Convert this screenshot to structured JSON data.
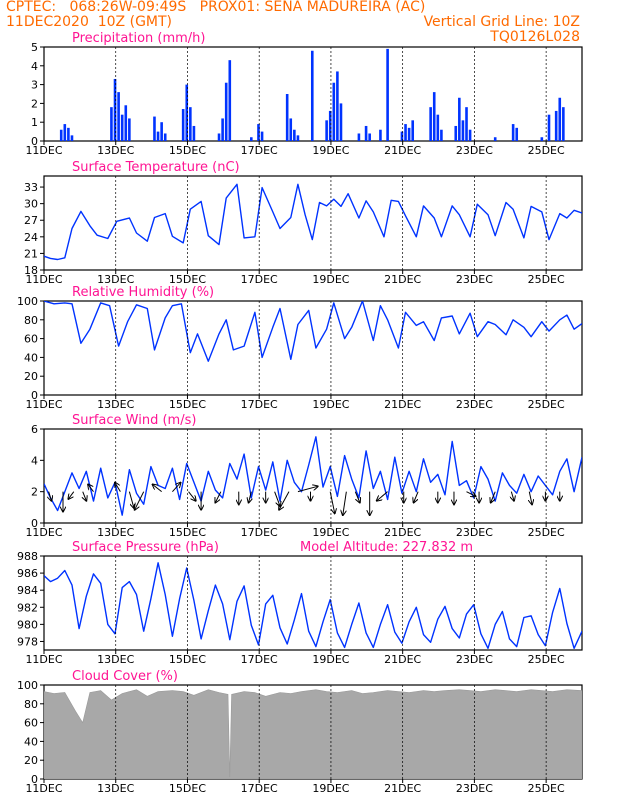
{
  "header": {
    "line1_left": "CPTEC:   068:26W-09:49S   PROX01: SENA MADUREIRA (AC)",
    "line2_left": "11DEC2020  10Z (GMT)",
    "line2_right": "Vertical Grid Line: 10Z",
    "line3_right": "TQ0126L028"
  },
  "colors": {
    "header": "#ff6a00",
    "panel_title": "#ff1493",
    "series": "#0033ff",
    "cloud": "#a8a8a8",
    "grid": "#000000"
  },
  "chart_data": [
    {
      "type": "bar",
      "title": "Precipitation (mm/h)",
      "ylim": [
        0,
        5
      ],
      "yticks": [
        0,
        1,
        2,
        3,
        4,
        5
      ],
      "x_tick_labels": [
        "11DEC",
        "13DEC",
        "15DEC",
        "17DEC",
        "19DEC",
        "21DEC",
        "23DEC",
        "25DEC"
      ],
      "x_start_day": 11.42,
      "x_end_day": 26.42,
      "series": [
        {
          "x": [
            11.9,
            12.0,
            12.1,
            12.2,
            13.3,
            13.4,
            13.5,
            13.6,
            13.7,
            13.8,
            14.5,
            14.6,
            14.7,
            14.8,
            15.3,
            15.4,
            15.5,
            15.6,
            16.3,
            16.4,
            16.5,
            16.6,
            17.2,
            17.4,
            17.5,
            18.2,
            18.3,
            18.4,
            18.5,
            18.9,
            19.3,
            19.4,
            19.5,
            19.6,
            19.7,
            20.2,
            20.4,
            20.5,
            20.8,
            21.0,
            21.4,
            21.5,
            21.6,
            21.7,
            22.2,
            22.3,
            22.4,
            22.5,
            22.9,
            23.0,
            23.1,
            23.2,
            23.3,
            24.0,
            24.5,
            24.6,
            25.3,
            25.5,
            25.7,
            25.8,
            25.9
          ],
          "values": [
            0.6,
            0.9,
            0.7,
            0.3,
            1.8,
            3.3,
            2.6,
            1.4,
            1.9,
            1.2,
            1.3,
            0.5,
            1.0,
            0.4,
            1.7,
            3.0,
            1.8,
            0.8,
            0.4,
            1.2,
            3.1,
            4.3,
            0.2,
            0.9,
            0.5,
            2.5,
            1.2,
            0.6,
            0.3,
            4.8,
            1.1,
            1.6,
            3.1,
            3.7,
            2.0,
            0.4,
            0.8,
            0.4,
            0.6,
            4.9,
            0.5,
            0.9,
            0.7,
            1.1,
            1.8,
            2.6,
            1.4,
            0.6,
            0.8,
            2.3,
            1.1,
            1.8,
            0.6,
            0.2,
            0.9,
            0.7,
            0.2,
            1.4,
            1.6,
            2.3,
            1.8
          ]
        }
      ]
    },
    {
      "type": "line",
      "title": "Surface Temperature (nC)",
      "ylim": [
        18,
        35
      ],
      "yticks": [
        18,
        21,
        24,
        27,
        30,
        33
      ],
      "x_tick_labels": [
        "11DEC",
        "13DEC",
        "15DEC",
        "17DEC",
        "19DEC",
        "21DEC",
        "23DEC",
        "25DEC"
      ],
      "series": [
        {
          "x": [
            11.42,
            11.6,
            11.8,
            12.0,
            12.2,
            12.45,
            12.7,
            12.9,
            13.2,
            13.45,
            13.8,
            14.0,
            14.3,
            14.5,
            14.8,
            15.0,
            15.3,
            15.5,
            15.8,
            16.0,
            16.3,
            16.5,
            16.8,
            17.0,
            17.3,
            17.5,
            17.8,
            18.0,
            18.3,
            18.5,
            18.7,
            18.9,
            19.1,
            19.3,
            19.5,
            19.7,
            19.9,
            20.2,
            20.4,
            20.6,
            20.9,
            21.1,
            21.3,
            21.5,
            21.8,
            22.0,
            22.3,
            22.5,
            22.8,
            23.0,
            23.3,
            23.5,
            23.8,
            24.0,
            24.3,
            24.5,
            24.8,
            25.0,
            25.3,
            25.5,
            25.8,
            26.0,
            26.2,
            26.42
          ],
          "values": [
            20.5,
            20.1,
            19.9,
            20.2,
            25.5,
            28.6,
            26.0,
            24.3,
            23.7,
            26.8,
            27.4,
            24.7,
            23.2,
            27.5,
            28.2,
            24.1,
            22.9,
            29.0,
            30.4,
            24.2,
            22.6,
            31.0,
            33.5,
            23.8,
            24.0,
            32.9,
            28.5,
            25.5,
            27.5,
            33.5,
            28.0,
            23.5,
            30.2,
            29.6,
            30.8,
            29.5,
            31.8,
            27.4,
            30.5,
            28.5,
            24.0,
            30.6,
            30.4,
            27.8,
            24.0,
            29.6,
            27.4,
            24.0,
            29.6,
            28.0,
            24.0,
            29.9,
            28.0,
            24.2,
            30.2,
            29.0,
            23.8,
            29.5,
            28.5,
            23.5,
            28.2,
            27.4,
            28.8,
            28.3
          ]
        }
      ]
    },
    {
      "type": "line",
      "title": "Relative Humidity (%)",
      "ylim": [
        0,
        100
      ],
      "yticks": [
        0,
        20,
        40,
        60,
        80,
        100
      ],
      "x_tick_labels": [
        "11DEC",
        "13DEC",
        "15DEC",
        "17DEC",
        "19DEC",
        "21DEC",
        "23DEC",
        "25DEC"
      ],
      "series": [
        {
          "x": [
            11.42,
            11.7,
            12.0,
            12.2,
            12.45,
            12.7,
            13.0,
            13.25,
            13.5,
            13.75,
            14.0,
            14.3,
            14.5,
            14.8,
            15.0,
            15.25,
            15.5,
            15.7,
            16.0,
            16.3,
            16.5,
            16.7,
            17.0,
            17.3,
            17.5,
            17.8,
            18.0,
            18.3,
            18.5,
            18.8,
            19.0,
            19.3,
            19.5,
            19.8,
            20.0,
            20.3,
            20.6,
            20.8,
            21.0,
            21.3,
            21.5,
            21.8,
            22.0,
            22.3,
            22.5,
            22.8,
            23.0,
            23.3,
            23.5,
            23.8,
            24.0,
            24.3,
            24.5,
            24.8,
            25.0,
            25.3,
            25.5,
            25.8,
            26.0,
            26.2,
            26.42
          ],
          "values": [
            100,
            97,
            98,
            97,
            55,
            70,
            98,
            95,
            52,
            78,
            96,
            92,
            48,
            82,
            95,
            97,
            45,
            65,
            36,
            65,
            80,
            48,
            52,
            88,
            40,
            72,
            92,
            38,
            75,
            90,
            50,
            70,
            98,
            60,
            72,
            100,
            58,
            95,
            80,
            50,
            88,
            74,
            78,
            58,
            82,
            84,
            65,
            87,
            62,
            78,
            75,
            64,
            80,
            72,
            62,
            78,
            68,
            80,
            85,
            70,
            76
          ]
        }
      ]
    },
    {
      "type": "line",
      "title": "Surface Wind (m/s)",
      "ylim": [
        0,
        6
      ],
      "yticks": [
        0,
        2,
        4,
        6
      ],
      "x_tick_labels": [
        "11DEC",
        "13DEC",
        "15DEC",
        "17DEC",
        "19DEC",
        "21DEC",
        "23DEC",
        "25DEC"
      ],
      "series": [
        {
          "x": [
            11.42,
            11.6,
            11.8,
            12.0,
            12.2,
            12.4,
            12.6,
            12.8,
            13.0,
            13.2,
            13.4,
            13.6,
            13.8,
            14.0,
            14.2,
            14.4,
            14.6,
            14.8,
            15.0,
            15.2,
            15.4,
            15.6,
            15.8,
            16.0,
            16.2,
            16.4,
            16.6,
            16.8,
            17.0,
            17.2,
            17.4,
            17.6,
            17.8,
            18.0,
            18.2,
            18.4,
            18.6,
            18.8,
            19.0,
            19.2,
            19.4,
            19.6,
            19.8,
            20.0,
            20.2,
            20.4,
            20.6,
            20.8,
            21.0,
            21.2,
            21.4,
            21.6,
            21.8,
            22.0,
            22.2,
            22.4,
            22.6,
            22.8,
            23.0,
            23.2,
            23.4,
            23.6,
            23.8,
            24.0,
            24.2,
            24.4,
            24.6,
            24.8,
            25.0,
            25.2,
            25.4,
            25.6,
            25.8,
            26.0,
            26.2,
            26.42
          ],
          "values": [
            2.5,
            1.6,
            0.8,
            2.0,
            3.2,
            2.2,
            3.3,
            1.4,
            3.5,
            1.6,
            2.6,
            0.5,
            3.4,
            1.9,
            1.2,
            3.6,
            2.4,
            2.2,
            3.5,
            1.5,
            3.8,
            2.6,
            1.4,
            3.3,
            2.1,
            1.6,
            3.8,
            2.8,
            4.4,
            1.6,
            3.6,
            2.1,
            3.9,
            1.4,
            4.0,
            2.6,
            2.0,
            3.7,
            5.5,
            2.3,
            3.6,
            1.7,
            4.3,
            2.8,
            1.6,
            4.6,
            2.2,
            3.3,
            1.5,
            4.2,
            1.9,
            3.3,
            2.0,
            4.1,
            2.6,
            3.1,
            1.8,
            5.2,
            2.4,
            2.7,
            1.6,
            3.6,
            2.8,
            1.4,
            3.2,
            2.4,
            1.9,
            3.1,
            2.0,
            3.0,
            2.4,
            1.8,
            3.3,
            4.1,
            2.0,
            4.2
          ]
        }
      ],
      "wind_vectors": {
        "x": [
          11.55,
          11.95,
          12.25,
          12.5,
          12.8,
          13.55,
          13.8,
          14.2,
          14.7,
          15.0,
          15.45,
          15.8,
          16.35,
          16.85,
          17.2,
          17.6,
          17.85,
          18.25,
          18.5,
          18.85,
          19.4,
          19.85,
          20.1,
          20.5,
          21.0,
          21.45,
          21.85,
          22.4,
          22.85,
          23.2,
          23.55,
          24.0,
          24.45,
          24.95,
          25.4,
          25.8
        ],
        "u": [
          0.3,
          0.0,
          -0.6,
          0.4,
          -0.6,
          -0.6,
          0.5,
          -1.0,
          -1.0,
          0.9,
          0.8,
          0.0,
          -0.6,
          0.0,
          -0.3,
          0.0,
          0.6,
          -1.1,
          2.2,
          0.0,
          0.5,
          -0.4,
          0.5,
          0.0,
          -1.2,
          0.0,
          -0.5,
          0.0,
          0.0,
          1.0,
          0.0,
          -0.5,
          0.3,
          0.3,
          0.0,
          0.0
        ],
        "v": [
          -1.0,
          -2.2,
          -0.8,
          -1.0,
          0.8,
          1.0,
          -1.8,
          -2.0,
          0.8,
          1.0,
          -1.0,
          -2.0,
          -1.2,
          -1.4,
          -1.2,
          -1.2,
          -1.6,
          -2.0,
          0.6,
          -1.0,
          -2.4,
          -2.6,
          -1.2,
          -2.6,
          -1.0,
          -1.2,
          -1.2,
          -1.2,
          -1.4,
          -0.5,
          -1.2,
          -1.2,
          -1.0,
          -1.4,
          -1.0,
          -1.0
        ]
      }
    },
    {
      "type": "line",
      "title": "Surface Pressure (hPa)",
      "annotation": "Model Altitude: 227.832 m",
      "ylim": [
        977,
        988
      ],
      "yticks": [
        978,
        980,
        982,
        984,
        986,
        988
      ],
      "x_tick_labels": [
        "11DEC",
        "13DEC",
        "15DEC",
        "17DEC",
        "19DEC",
        "21DEC",
        "23DEC",
        "25DEC"
      ],
      "series": [
        {
          "x": [
            11.42,
            11.6,
            11.8,
            12.0,
            12.2,
            12.4,
            12.6,
            12.8,
            13.0,
            13.2,
            13.4,
            13.6,
            13.8,
            14.0,
            14.2,
            14.4,
            14.6,
            14.8,
            15.0,
            15.2,
            15.4,
            15.6,
            15.8,
            16.0,
            16.2,
            16.4,
            16.6,
            16.8,
            17.0,
            17.2,
            17.4,
            17.6,
            17.8,
            18.0,
            18.2,
            18.4,
            18.6,
            18.8,
            19.0,
            19.2,
            19.4,
            19.6,
            19.8,
            20.0,
            20.2,
            20.4,
            20.6,
            20.8,
            21.0,
            21.2,
            21.4,
            21.6,
            21.8,
            22.0,
            22.2,
            22.4,
            22.6,
            22.8,
            23.0,
            23.2,
            23.4,
            23.6,
            23.8,
            24.0,
            24.2,
            24.4,
            24.6,
            24.8,
            25.0,
            25.2,
            25.4,
            25.6,
            25.8,
            26.0,
            26.2,
            26.42
          ],
          "values": [
            985.7,
            985.0,
            985.4,
            986.3,
            984.6,
            979.5,
            983.3,
            985.9,
            984.8,
            980.0,
            978.9,
            984.3,
            985.0,
            983.5,
            979.2,
            983.0,
            987.2,
            983.5,
            978.6,
            983.0,
            986.6,
            982.8,
            978.3,
            981.6,
            984.6,
            982.4,
            978.2,
            982.7,
            984.5,
            979.9,
            977.6,
            982.4,
            983.4,
            979.6,
            977.7,
            980.5,
            983.6,
            979.2,
            977.4,
            980.3,
            982.9,
            979.0,
            977.3,
            980.0,
            982.5,
            979.0,
            977.3,
            980.0,
            982.3,
            979.1,
            977.8,
            980.3,
            982.0,
            978.8,
            977.9,
            980.6,
            982.1,
            979.5,
            978.4,
            981.2,
            982.3,
            978.9,
            977.2,
            980.0,
            981.5,
            978.3,
            977.4,
            980.8,
            981.0,
            978.8,
            977.5,
            981.4,
            984.2,
            980.1,
            977.2,
            979.2
          ]
        }
      ]
    },
    {
      "type": "area",
      "title": "Cloud Cover (%)",
      "ylim": [
        0,
        100
      ],
      "yticks": [
        0,
        20,
        40,
        60,
        80,
        100
      ],
      "x_tick_labels": [
        "11DEC",
        "13DEC",
        "15DEC",
        "17DEC",
        "19DEC",
        "21DEC",
        "23DEC",
        "25DEC"
      ],
      "series": [
        {
          "x": [
            11.42,
            11.7,
            12.0,
            12.3,
            12.5,
            12.7,
            13.0,
            13.3,
            13.6,
            14.0,
            14.3,
            14.6,
            15.0,
            15.3,
            15.6,
            16.0,
            16.3,
            16.55,
            16.6,
            16.65,
            17.0,
            17.3,
            17.6,
            18.0,
            18.3,
            18.6,
            19.0,
            19.3,
            19.6,
            20.0,
            20.3,
            20.6,
            21.0,
            21.3,
            21.6,
            22.0,
            22.3,
            22.6,
            23.0,
            23.3,
            23.6,
            24.0,
            24.3,
            24.6,
            25.0,
            25.3,
            25.6,
            26.0,
            26.42
          ],
          "values": [
            93,
            91,
            92,
            72,
            60,
            92,
            94,
            84,
            91,
            95,
            88,
            93,
            94,
            93,
            89,
            95,
            92,
            90,
            2,
            90,
            93,
            92,
            88,
            92,
            91,
            93,
            95,
            93,
            92,
            94,
            91,
            92,
            94,
            93,
            92,
            94,
            93,
            94,
            95,
            94,
            93,
            95,
            94,
            93,
            95,
            94,
            93,
            95,
            94
          ]
        }
      ]
    }
  ]
}
